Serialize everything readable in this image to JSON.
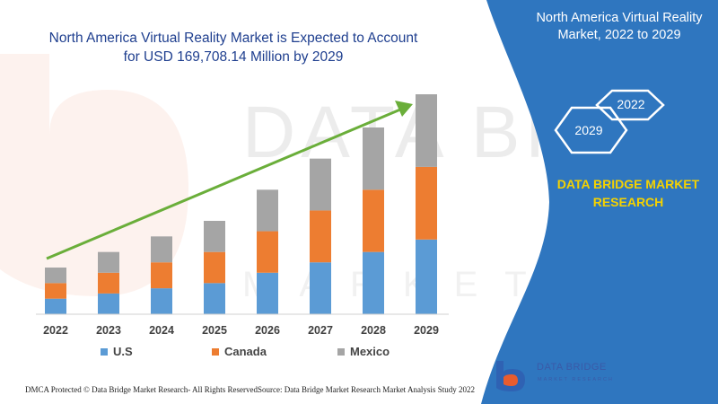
{
  "chart_data": {
    "type": "bar",
    "stacked": true,
    "title": "North America Virtual Reality Market is Expected to Account for USD 169,708.14 Million by 2029",
    "categories": [
      "2022",
      "2023",
      "2024",
      "2025",
      "2026",
      "2027",
      "2028",
      "2029"
    ],
    "series": [
      {
        "name": "U.S",
        "color": "#5b9bd5",
        "values": [
          15,
          20,
          25,
          30,
          40,
          50,
          60,
          72
        ]
      },
      {
        "name": "Canada",
        "color": "#ed7d31",
        "values": [
          15,
          20,
          25,
          30,
          40,
          50,
          60,
          70
        ]
      },
      {
        "name": "Mexico",
        "color": "#a5a5a5",
        "values": [
          15,
          20,
          25,
          30,
          40,
          50,
          60,
          70
        ]
      }
    ],
    "ylim": [
      0,
      225
    ],
    "grid": false,
    "legend_position": "bottom",
    "trend_arrow": true
  },
  "header": {
    "title_line1": "North America Virtual Reality Market is Expected to Account",
    "title_line2": "for USD 169,708.14 Million by 2029"
  },
  "panel": {
    "title": "North America Virtual Reality Market, 2022 to 2029",
    "hex_start": "2029",
    "hex_end": "2022",
    "brand_line1": "DATA BRIDGE MARKET",
    "brand_line2": "RESEARCH",
    "panel_color": "#2f76bf",
    "brand_color": "#f5d200"
  },
  "footer": {
    "left": "DMCA Protected © Data Bridge Market Research- All Rights Reserved.",
    "right": "Source: Data Bridge Market Research Market Analysis Study 2022"
  },
  "logo": {
    "name": "DATA BRIDGE",
    "tagline": "MARKET RESEARCH",
    "icon": "data-bridge-b-logo-icon"
  }
}
